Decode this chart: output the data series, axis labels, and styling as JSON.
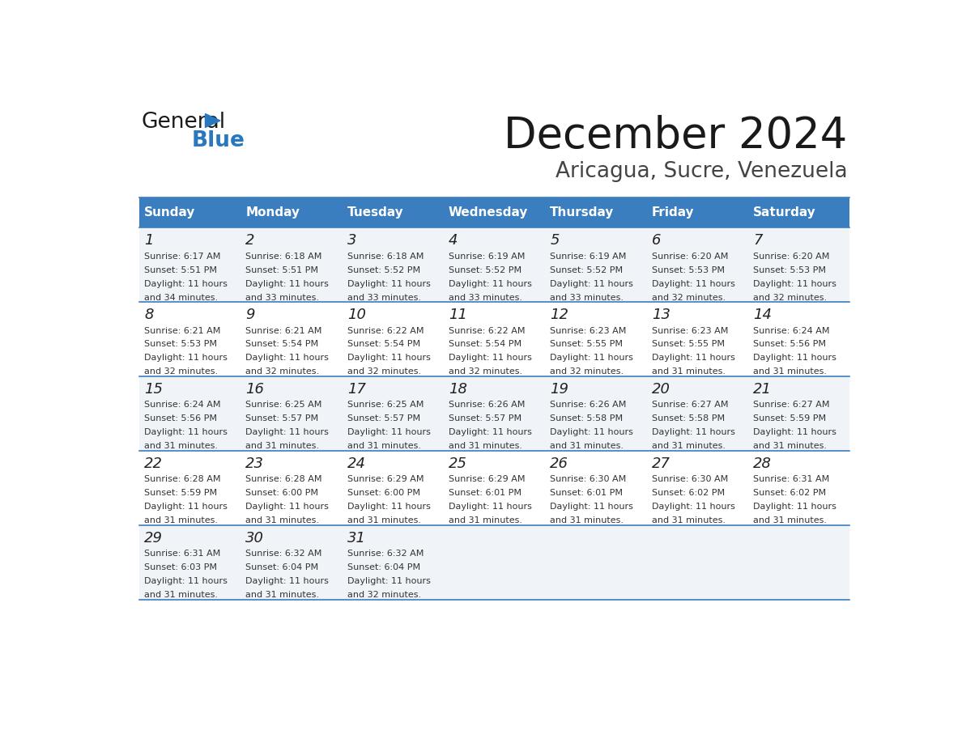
{
  "title": "December 2024",
  "subtitle": "Aricagua, Sucre, Venezuela",
  "header_bg": "#3a7ebf",
  "header_text_color": "#ffffff",
  "cell_bg_odd": "#f0f4f8",
  "cell_bg_even": "#ffffff",
  "divider_color": "#3a7ebf",
  "text_color": "#333333",
  "day_num_color": "#222222",
  "days_of_week": [
    "Sunday",
    "Monday",
    "Tuesday",
    "Wednesday",
    "Thursday",
    "Friday",
    "Saturday"
  ],
  "weeks": [
    [
      {
        "day": 1,
        "sunrise": "6:17 AM",
        "sunset": "5:51 PM",
        "daylight": "11 hours and 34 minutes."
      },
      {
        "day": 2,
        "sunrise": "6:18 AM",
        "sunset": "5:51 PM",
        "daylight": "11 hours and 33 minutes."
      },
      {
        "day": 3,
        "sunrise": "6:18 AM",
        "sunset": "5:52 PM",
        "daylight": "11 hours and 33 minutes."
      },
      {
        "day": 4,
        "sunrise": "6:19 AM",
        "sunset": "5:52 PM",
        "daylight": "11 hours and 33 minutes."
      },
      {
        "day": 5,
        "sunrise": "6:19 AM",
        "sunset": "5:52 PM",
        "daylight": "11 hours and 33 minutes."
      },
      {
        "day": 6,
        "sunrise": "6:20 AM",
        "sunset": "5:53 PM",
        "daylight": "11 hours and 32 minutes."
      },
      {
        "day": 7,
        "sunrise": "6:20 AM",
        "sunset": "5:53 PM",
        "daylight": "11 hours and 32 minutes."
      }
    ],
    [
      {
        "day": 8,
        "sunrise": "6:21 AM",
        "sunset": "5:53 PM",
        "daylight": "11 hours and 32 minutes."
      },
      {
        "day": 9,
        "sunrise": "6:21 AM",
        "sunset": "5:54 PM",
        "daylight": "11 hours and 32 minutes."
      },
      {
        "day": 10,
        "sunrise": "6:22 AM",
        "sunset": "5:54 PM",
        "daylight": "11 hours and 32 minutes."
      },
      {
        "day": 11,
        "sunrise": "6:22 AM",
        "sunset": "5:54 PM",
        "daylight": "11 hours and 32 minutes."
      },
      {
        "day": 12,
        "sunrise": "6:23 AM",
        "sunset": "5:55 PM",
        "daylight": "11 hours and 32 minutes."
      },
      {
        "day": 13,
        "sunrise": "6:23 AM",
        "sunset": "5:55 PM",
        "daylight": "11 hours and 31 minutes."
      },
      {
        "day": 14,
        "sunrise": "6:24 AM",
        "sunset": "5:56 PM",
        "daylight": "11 hours and 31 minutes."
      }
    ],
    [
      {
        "day": 15,
        "sunrise": "6:24 AM",
        "sunset": "5:56 PM",
        "daylight": "11 hours and 31 minutes."
      },
      {
        "day": 16,
        "sunrise": "6:25 AM",
        "sunset": "5:57 PM",
        "daylight": "11 hours and 31 minutes."
      },
      {
        "day": 17,
        "sunrise": "6:25 AM",
        "sunset": "5:57 PM",
        "daylight": "11 hours and 31 minutes."
      },
      {
        "day": 18,
        "sunrise": "6:26 AM",
        "sunset": "5:57 PM",
        "daylight": "11 hours and 31 minutes."
      },
      {
        "day": 19,
        "sunrise": "6:26 AM",
        "sunset": "5:58 PM",
        "daylight": "11 hours and 31 minutes."
      },
      {
        "day": 20,
        "sunrise": "6:27 AM",
        "sunset": "5:58 PM",
        "daylight": "11 hours and 31 minutes."
      },
      {
        "day": 21,
        "sunrise": "6:27 AM",
        "sunset": "5:59 PM",
        "daylight": "11 hours and 31 minutes."
      }
    ],
    [
      {
        "day": 22,
        "sunrise": "6:28 AM",
        "sunset": "5:59 PM",
        "daylight": "11 hours and 31 minutes."
      },
      {
        "day": 23,
        "sunrise": "6:28 AM",
        "sunset": "6:00 PM",
        "daylight": "11 hours and 31 minutes."
      },
      {
        "day": 24,
        "sunrise": "6:29 AM",
        "sunset": "6:00 PM",
        "daylight": "11 hours and 31 minutes."
      },
      {
        "day": 25,
        "sunrise": "6:29 AM",
        "sunset": "6:01 PM",
        "daylight": "11 hours and 31 minutes."
      },
      {
        "day": 26,
        "sunrise": "6:30 AM",
        "sunset": "6:01 PM",
        "daylight": "11 hours and 31 minutes."
      },
      {
        "day": 27,
        "sunrise": "6:30 AM",
        "sunset": "6:02 PM",
        "daylight": "11 hours and 31 minutes."
      },
      {
        "day": 28,
        "sunrise": "6:31 AM",
        "sunset": "6:02 PM",
        "daylight": "11 hours and 31 minutes."
      }
    ],
    [
      {
        "day": 29,
        "sunrise": "6:31 AM",
        "sunset": "6:03 PM",
        "daylight": "11 hours and 31 minutes."
      },
      {
        "day": 30,
        "sunrise": "6:32 AM",
        "sunset": "6:04 PM",
        "daylight": "11 hours and 31 minutes."
      },
      {
        "day": 31,
        "sunrise": "6:32 AM",
        "sunset": "6:04 PM",
        "daylight": "11 hours and 32 minutes."
      },
      null,
      null,
      null,
      null
    ]
  ],
  "logo_general_color": "#1a1a1a",
  "logo_blue_color": "#2878c0",
  "logo_triangle_color": "#2878c0",
  "fig_width": 11.88,
  "fig_height": 9.18,
  "dpi": 100
}
